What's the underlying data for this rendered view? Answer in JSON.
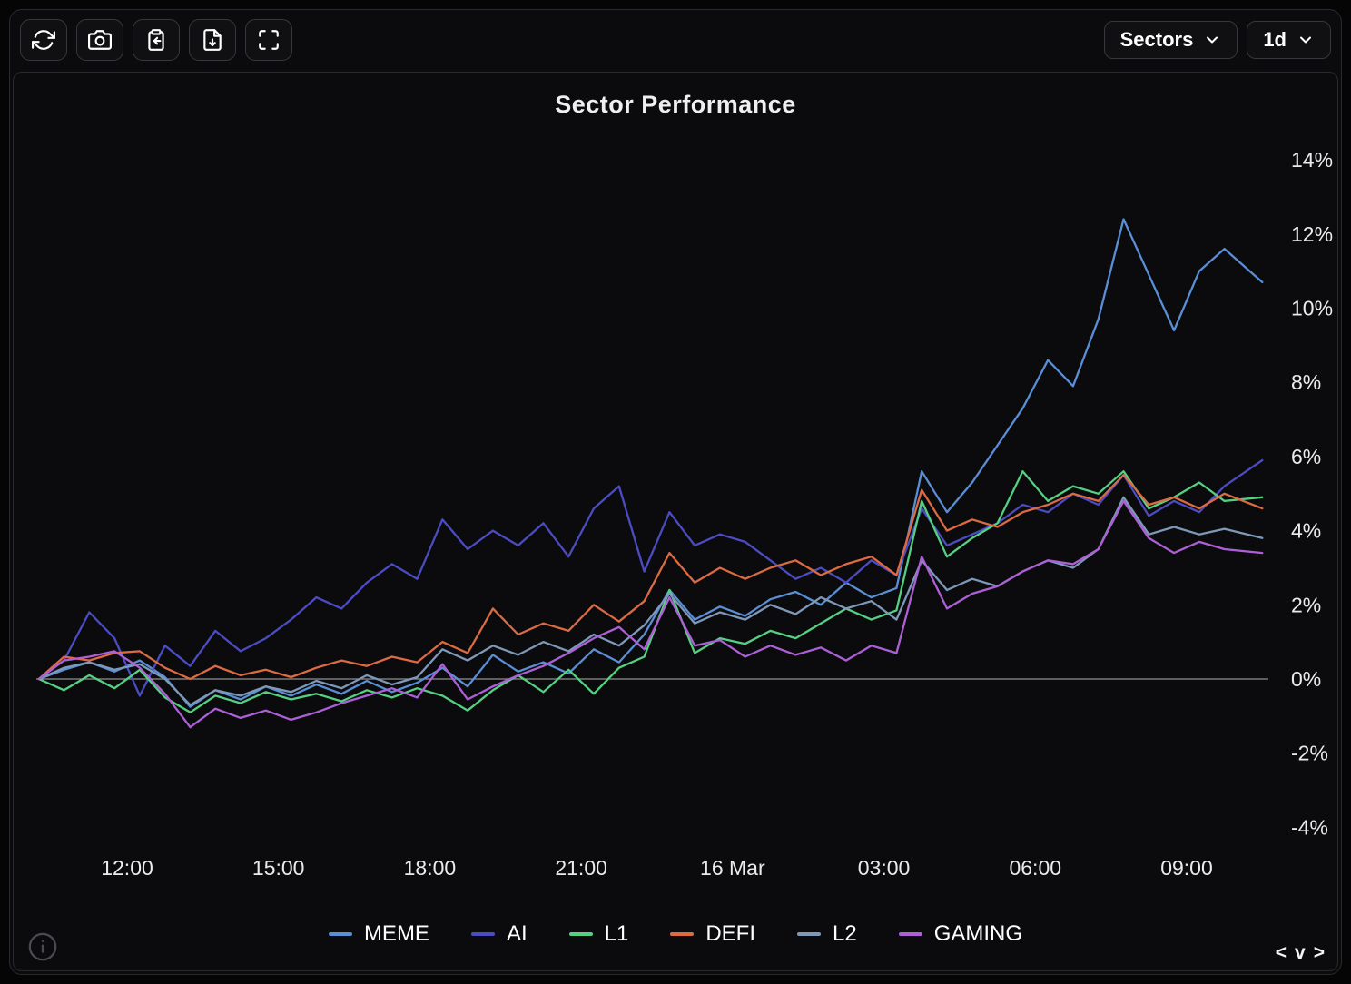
{
  "toolbar": {
    "icons": [
      "refresh-icon",
      "camera-icon",
      "clipboard-import-icon",
      "file-download-icon",
      "fullscreen-icon"
    ],
    "sectors_label": "Sectors",
    "timeframe_label": "1d"
  },
  "footer": {
    "info_icon": "info-circle-icon",
    "nav_prev": "<",
    "nav_collapse": "v",
    "nav_next": ">"
  },
  "colors": {
    "background": "#0b0b0d",
    "panel_border": "#2a2a2e",
    "zero_line": "#909090",
    "text": "#ebebeb"
  },
  "chart_data": {
    "type": "line",
    "title": "Sector Performance",
    "unit": "%",
    "grid": "zero-line-only",
    "legend_position": "bottom",
    "ylim": [
      -5.2,
      15.2
    ],
    "y_ticks": [
      {
        "v": 14,
        "label": "14%"
      },
      {
        "v": 12,
        "label": "12%"
      },
      {
        "v": 10,
        "label": "10%"
      },
      {
        "v": 8,
        "label": "8%"
      },
      {
        "v": 6,
        "label": "6%"
      },
      {
        "v": 4,
        "label": "4%"
      },
      {
        "v": 2,
        "label": "2%"
      },
      {
        "v": 0,
        "label": "0%"
      },
      {
        "v": -2,
        "label": "-2%"
      },
      {
        "v": -4,
        "label": "-4%"
      }
    ],
    "x_ticks": [
      {
        "t": 12,
        "label": "12:00"
      },
      {
        "t": 15,
        "label": "15:00"
      },
      {
        "t": 18,
        "label": "18:00"
      },
      {
        "t": 21,
        "label": "21:00"
      },
      {
        "t": 24,
        "label": "16 Mar"
      },
      {
        "t": 27,
        "label": "03:00"
      },
      {
        "t": 30,
        "label": "06:00"
      },
      {
        "t": 33,
        "label": "09:00"
      }
    ],
    "x_hours": [
      10.25,
      10.75,
      11.25,
      11.75,
      12.25,
      12.75,
      13.25,
      13.75,
      14.25,
      14.75,
      15.25,
      15.75,
      16.25,
      16.75,
      17.25,
      17.75,
      18.25,
      18.75,
      19.25,
      19.75,
      20.25,
      20.75,
      21.25,
      21.75,
      22.25,
      22.75,
      23.25,
      23.75,
      24.25,
      24.75,
      25.25,
      25.75,
      26.25,
      26.75,
      27.25,
      27.75,
      28.25,
      28.75,
      29.25,
      29.75,
      30.25,
      30.75,
      31.25,
      31.75,
      32.25,
      32.75,
      33.25,
      33.75,
      34.5
    ],
    "series": [
      {
        "name": "MEME",
        "color": "#5a8ed5",
        "values": [
          0,
          0.25,
          0.45,
          0.2,
          0.5,
          0.05,
          -0.75,
          -0.3,
          -0.55,
          -0.2,
          -0.45,
          -0.15,
          -0.4,
          -0.05,
          -0.35,
          -0.1,
          0.3,
          -0.2,
          0.65,
          0.2,
          0.45,
          0.15,
          0.8,
          0.45,
          1.2,
          2.4,
          1.6,
          1.95,
          1.7,
          2.15,
          2.35,
          2.0,
          2.6,
          2.2,
          2.45,
          5.6,
          4.5,
          5.3,
          6.3,
          7.3,
          8.6,
          7.9,
          9.7,
          12.4,
          10.9,
          9.4,
          11.0,
          11.6,
          10.7
        ]
      },
      {
        "name": "AI",
        "color": "#4c4cc2",
        "values": [
          0,
          0.5,
          1.8,
          1.1,
          -0.45,
          0.9,
          0.35,
          1.3,
          0.75,
          1.1,
          1.6,
          2.2,
          1.9,
          2.6,
          3.1,
          2.7,
          4.3,
          3.5,
          4.0,
          3.6,
          4.2,
          3.3,
          4.6,
          5.2,
          2.9,
          4.5,
          3.6,
          3.9,
          3.7,
          3.2,
          2.7,
          3.0,
          2.6,
          3.2,
          2.8,
          4.6,
          3.6,
          3.9,
          4.2,
          4.7,
          4.5,
          5.0,
          4.7,
          5.5,
          4.4,
          4.8,
          4.5,
          5.2,
          5.9
        ]
      },
      {
        "name": "L1",
        "color": "#55d083",
        "values": [
          0,
          -0.3,
          0.1,
          -0.25,
          0.25,
          -0.5,
          -0.9,
          -0.45,
          -0.65,
          -0.35,
          -0.55,
          -0.4,
          -0.6,
          -0.3,
          -0.5,
          -0.25,
          -0.45,
          -0.85,
          -0.3,
          0.1,
          -0.35,
          0.25,
          -0.4,
          0.3,
          0.6,
          2.4,
          0.7,
          1.1,
          0.95,
          1.3,
          1.1,
          1.5,
          1.9,
          1.6,
          1.85,
          4.8,
          3.3,
          3.8,
          4.2,
          5.6,
          4.8,
          5.2,
          5.0,
          5.6,
          4.6,
          4.9,
          5.3,
          4.8,
          4.9
        ]
      },
      {
        "name": "DEFI",
        "color": "#dc6a43",
        "values": [
          0,
          0.6,
          0.5,
          0.7,
          0.75,
          0.3,
          0.0,
          0.35,
          0.1,
          0.25,
          0.05,
          0.3,
          0.5,
          0.35,
          0.6,
          0.45,
          1.0,
          0.7,
          1.9,
          1.2,
          1.5,
          1.3,
          2.0,
          1.55,
          2.1,
          3.4,
          2.6,
          3.0,
          2.7,
          3.0,
          3.2,
          2.8,
          3.1,
          3.3,
          2.8,
          5.1,
          4.0,
          4.3,
          4.1,
          4.5,
          4.7,
          5.0,
          4.8,
          5.5,
          4.7,
          4.9,
          4.6,
          5.0,
          4.6
        ]
      },
      {
        "name": "L2",
        "color": "#7d98b8",
        "values": [
          0,
          0.3,
          0.45,
          0.25,
          0.4,
          0.0,
          -0.7,
          -0.3,
          -0.45,
          -0.2,
          -0.35,
          -0.05,
          -0.25,
          0.1,
          -0.15,
          0.05,
          0.8,
          0.5,
          0.9,
          0.65,
          1.0,
          0.75,
          1.2,
          0.9,
          1.45,
          2.3,
          1.5,
          1.8,
          1.6,
          2.0,
          1.75,
          2.2,
          1.9,
          2.1,
          1.6,
          3.2,
          2.4,
          2.7,
          2.5,
          2.9,
          3.2,
          3.0,
          3.5,
          4.9,
          3.9,
          4.1,
          3.9,
          4.05,
          3.8
        ]
      },
      {
        "name": "GAMING",
        "color": "#ad5fd6",
        "values": [
          0,
          0.5,
          0.6,
          0.75,
          0.3,
          -0.4,
          -1.3,
          -0.8,
          -1.05,
          -0.85,
          -1.1,
          -0.9,
          -0.65,
          -0.45,
          -0.25,
          -0.5,
          0.4,
          -0.55,
          -0.2,
          0.1,
          0.35,
          0.7,
          1.1,
          1.4,
          0.8,
          2.2,
          0.9,
          1.05,
          0.6,
          0.9,
          0.65,
          0.85,
          0.5,
          0.9,
          0.7,
          3.3,
          1.9,
          2.3,
          2.5,
          2.9,
          3.2,
          3.1,
          3.5,
          4.8,
          3.8,
          3.4,
          3.7,
          3.5,
          3.4
        ]
      }
    ]
  }
}
